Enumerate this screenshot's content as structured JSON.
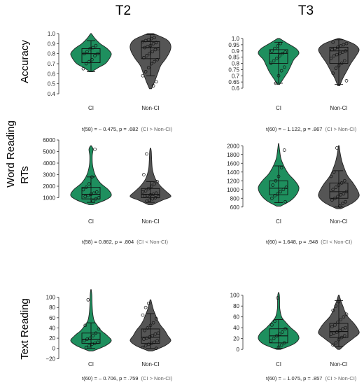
{
  "column_headers": [
    "T2",
    "T3"
  ],
  "row_group_label": "Word Reading",
  "row_labels": [
    "Accuracy",
    "RTs",
    "Text Reading"
  ],
  "colors": {
    "CI": "#1e8f5e",
    "Non-CI": "#555555",
    "outline": "#222222",
    "box": "#111111"
  },
  "chart_data": [
    {
      "type": "violin",
      "id": "acc-t2",
      "row": 0,
      "col": 0,
      "ylim": [
        0.4,
        1.0
      ],
      "yticks": [
        0.4,
        0.5,
        0.6,
        0.7,
        0.8,
        0.9,
        1.0
      ],
      "ytick_labels": [
        "0.4",
        "0.5",
        "0.6",
        "0.7",
        "0.8",
        "0.9",
        "1.0"
      ],
      "categories": [
        "CI",
        "Non-CI"
      ],
      "stat_text": "t(58) = – 0.475, p = .682",
      "direction_text": "(CI > Non-CI)",
      "groups": [
        {
          "name": "CI",
          "range": [
            0.62,
            1.0
          ],
          "q1": 0.71,
          "median": 0.8,
          "q3": 0.85,
          "whisker": [
            0.62,
            0.93
          ],
          "density": [
            [
              0.62,
              0.05
            ],
            [
              0.66,
              0.35
            ],
            [
              0.7,
              0.7
            ],
            [
              0.75,
              0.9
            ],
            [
              0.8,
              1.0
            ],
            [
              0.85,
              0.8
            ],
            [
              0.9,
              0.45
            ],
            [
              0.95,
              0.2
            ],
            [
              1.0,
              0.02
            ]
          ],
          "points": [
            0.65,
            0.7,
            0.72,
            0.74,
            0.78,
            0.8,
            0.8,
            0.82,
            0.85,
            0.86,
            0.88
          ]
        },
        {
          "name": "Non-CI",
          "range": [
            0.45,
            1.0
          ],
          "q1": 0.75,
          "median": 0.86,
          "q3": 0.92,
          "whisker": [
            0.58,
            0.99
          ],
          "density": [
            [
              0.45,
              0.05
            ],
            [
              0.52,
              0.2
            ],
            [
              0.6,
              0.35
            ],
            [
              0.68,
              0.5
            ],
            [
              0.75,
              0.75
            ],
            [
              0.82,
              0.95
            ],
            [
              0.88,
              1.0
            ],
            [
              0.94,
              0.8
            ],
            [
              1.0,
              0.15
            ]
          ],
          "points": [
            0.48,
            0.52,
            0.58,
            0.62,
            0.66,
            0.7,
            0.72,
            0.74,
            0.76,
            0.78,
            0.8,
            0.82,
            0.84,
            0.85,
            0.86,
            0.87,
            0.88,
            0.9,
            0.91,
            0.92,
            0.93,
            0.94,
            0.95,
            0.96
          ]
        }
      ]
    },
    {
      "type": "violin",
      "id": "acc-t3",
      "row": 0,
      "col": 1,
      "ylim": [
        0.6,
        1.0
      ],
      "yticks": [
        0.6,
        0.65,
        0.7,
        0.75,
        0.8,
        0.85,
        0.9,
        0.95,
        1.0
      ],
      "ytick_labels": [
        "0.6",
        "0.65",
        "0.7",
        "0.75",
        "0.8",
        "0.85",
        "0.9",
        "0.95",
        "1.0"
      ],
      "categories": [
        "CI",
        "Non-CI"
      ],
      "stat_text": "t(60) = – 1.122, p = .867",
      "direction_text": "(CI > Non-CI)",
      "groups": [
        {
          "name": "CI",
          "range": [
            0.63,
            1.0
          ],
          "q1": 0.8,
          "median": 0.88,
          "q3": 0.91,
          "whisker": [
            0.64,
            0.97
          ],
          "density": [
            [
              0.63,
              0.05
            ],
            [
              0.68,
              0.25
            ],
            [
              0.73,
              0.45
            ],
            [
              0.78,
              0.6
            ],
            [
              0.83,
              0.75
            ],
            [
              0.88,
              1.0
            ],
            [
              0.92,
              0.85
            ],
            [
              0.96,
              0.45
            ],
            [
              1.0,
              0.05
            ]
          ],
          "points": [
            0.64,
            0.7,
            0.74,
            0.77,
            0.8,
            0.82,
            0.84,
            0.86,
            0.88,
            0.89,
            0.9,
            0.92,
            0.94,
            0.96
          ]
        },
        {
          "name": "Non-CI",
          "range": [
            0.62,
            1.0
          ],
          "q1": 0.8,
          "median": 0.9,
          "q3": 0.93,
          "whisker": [
            0.63,
            0.99
          ],
          "density": [
            [
              0.62,
              0.05
            ],
            [
              0.68,
              0.2
            ],
            [
              0.74,
              0.4
            ],
            [
              0.8,
              0.6
            ],
            [
              0.86,
              0.85
            ],
            [
              0.91,
              1.0
            ],
            [
              0.95,
              0.8
            ],
            [
              0.98,
              0.4
            ],
            [
              1.0,
              0.05
            ]
          ],
          "points": [
            0.66,
            0.72,
            0.76,
            0.78,
            0.8,
            0.82,
            0.84,
            0.86,
            0.87,
            0.88,
            0.89,
            0.9,
            0.91,
            0.92,
            0.93,
            0.94,
            0.95,
            0.96,
            0.97
          ]
        }
      ]
    },
    {
      "type": "violin",
      "id": "rt-t2",
      "row": 1,
      "col": 0,
      "ylim": [
        0,
        6000
      ],
      "yticks": [
        1000,
        2000,
        3000,
        4000,
        5000,
        6000
      ],
      "ytick_labels": [
        "1000",
        "2000",
        "3000",
        "4000",
        "5000",
        "6000"
      ],
      "categories": [
        "CI",
        "Non-CI"
      ],
      "stat_text": "t(58) = 0.862, p = .804",
      "direction_text": "(CI < Non-CI)",
      "groups": [
        {
          "name": "CI",
          "range": [
            400,
            5500
          ],
          "q1": 900,
          "median": 1300,
          "q3": 1900,
          "whisker": [
            600,
            2800
          ],
          "density": [
            [
              400,
              0.1
            ],
            [
              800,
              0.7
            ],
            [
              1200,
              1.0
            ],
            [
              1700,
              0.85
            ],
            [
              2300,
              0.45
            ],
            [
              3000,
              0.2
            ],
            [
              3800,
              0.08
            ],
            [
              4600,
              0.06
            ],
            [
              5200,
              0.1
            ],
            [
              5500,
              0.02
            ]
          ],
          "points": [
            700,
            900,
            1000,
            1100,
            1200,
            1300,
            1400,
            1500,
            1700,
            1900,
            2200,
            2800,
            5200
          ]
        },
        {
          "name": "Non-CI",
          "range": [
            400,
            5300
          ],
          "q1": 1000,
          "median": 1300,
          "q3": 1800,
          "whisker": [
            600,
            2400
          ],
          "density": [
            [
              400,
              0.1
            ],
            [
              800,
              0.6
            ],
            [
              1100,
              1.0
            ],
            [
              1500,
              0.8
            ],
            [
              2000,
              0.5
            ],
            [
              2600,
              0.25
            ],
            [
              3400,
              0.1
            ],
            [
              4200,
              0.06
            ],
            [
              5000,
              0.04
            ],
            [
              5300,
              0.01
            ]
          ],
          "points": [
            700,
            800,
            900,
            1000,
            1100,
            1150,
            1200,
            1250,
            1300,
            1400,
            1500,
            1600,
            1800,
            2000,
            2200,
            2400,
            3000,
            4800
          ]
        }
      ]
    },
    {
      "type": "violin",
      "id": "rt-t3",
      "row": 1,
      "col": 1,
      "ylim": [
        500,
        2100
      ],
      "yticks": [
        600,
        800,
        1000,
        1200,
        1400,
        1600,
        1800,
        2000
      ],
      "ytick_labels": [
        "600",
        "800",
        "1000",
        "1200",
        "1400",
        "1600",
        "1800",
        "2000"
      ],
      "categories": [
        "CI",
        "Non-CI"
      ],
      "stat_text": "t(60) = 1.648, p = .948",
      "direction_text": "(CI < Non-CI)",
      "groups": [
        {
          "name": "CI",
          "range": [
            620,
            2050
          ],
          "q1": 880,
          "median": 1030,
          "q3": 1200,
          "whisker": [
            700,
            1540
          ],
          "density": [
            [
              620,
              0.1
            ],
            [
              750,
              0.6
            ],
            [
              900,
              0.9
            ],
            [
              1050,
              1.0
            ],
            [
              1200,
              0.8
            ],
            [
              1350,
              0.5
            ],
            [
              1500,
              0.3
            ],
            [
              1700,
              0.12
            ],
            [
              1900,
              0.05
            ],
            [
              2050,
              0.01
            ]
          ],
          "points": [
            720,
            800,
            860,
            900,
            950,
            1000,
            1050,
            1100,
            1200,
            1300,
            1500,
            1900
          ]
        },
        {
          "name": "Non-CI",
          "range": [
            560,
            2000
          ],
          "q1": 800,
          "median": 950,
          "q3": 1150,
          "whisker": [
            600,
            1430
          ],
          "density": [
            [
              560,
              0.1
            ],
            [
              700,
              0.7
            ],
            [
              850,
              1.0
            ],
            [
              1000,
              0.9
            ],
            [
              1150,
              0.7
            ],
            [
              1300,
              0.45
            ],
            [
              1450,
              0.3
            ],
            [
              1650,
              0.15
            ],
            [
              1850,
              0.06
            ],
            [
              2000,
              0.02
            ]
          ],
          "points": [
            620,
            680,
            720,
            760,
            800,
            840,
            880,
            900,
            950,
            1000,
            1050,
            1100,
            1150,
            1200,
            1300,
            1400,
            1950
          ]
        }
      ]
    },
    {
      "type": "violin",
      "id": "text-t2",
      "row": 2,
      "col": 0,
      "ylim": [
        -25,
        120
      ],
      "yticks": [
        -20,
        0,
        20,
        40,
        60,
        80,
        100
      ],
      "ytick_labels": [
        "−20",
        "0",
        "20",
        "40",
        "60",
        "80",
        "100"
      ],
      "categories": [
        "CI",
        "Non-CI"
      ],
      "stat_text": "t(60) = – 0.706, p = .759",
      "direction_text": "(CI > Non-CI)",
      "groups": [
        {
          "name": "CI",
          "range": [
            -5,
            115
          ],
          "q1": 10,
          "median": 18,
          "q3": 30,
          "whisker": [
            0,
            50
          ],
          "density": [
            [
              -5,
              0.1
            ],
            [
              5,
              0.7
            ],
            [
              15,
              1.0
            ],
            [
              25,
              0.8
            ],
            [
              35,
              0.5
            ],
            [
              45,
              0.3
            ],
            [
              55,
              0.15
            ],
            [
              70,
              0.08
            ],
            [
              90,
              0.05
            ],
            [
              105,
              0.04
            ],
            [
              115,
              0.01
            ]
          ],
          "points": [
            2,
            5,
            8,
            10,
            12,
            15,
            18,
            20,
            25,
            30,
            38,
            45,
            95
          ]
        },
        {
          "name": "Non-CI",
          "range": [
            -5,
            95
          ],
          "q1": 10,
          "median": 22,
          "q3": 38,
          "whisker": [
            0,
            68
          ],
          "density": [
            [
              -5,
              0.1
            ],
            [
              5,
              0.7
            ],
            [
              15,
              1.0
            ],
            [
              25,
              0.85
            ],
            [
              35,
              0.7
            ],
            [
              45,
              0.5
            ],
            [
              55,
              0.35
            ],
            [
              65,
              0.25
            ],
            [
              75,
              0.15
            ],
            [
              85,
              0.08
            ],
            [
              95,
              0.02
            ]
          ],
          "points": [
            0,
            2,
            5,
            8,
            10,
            12,
            15,
            18,
            20,
            22,
            25,
            28,
            30,
            35,
            40,
            45,
            50,
            58,
            65,
            80,
            88
          ]
        }
      ]
    },
    {
      "type": "violin",
      "id": "text-t3",
      "row": 2,
      "col": 1,
      "ylim": [
        -5,
        110
      ],
      "yticks": [
        0,
        20,
        40,
        60,
        80,
        100
      ],
      "ytick_labels": [
        "0",
        "20",
        "40",
        "60",
        "80",
        "100"
      ],
      "categories": [
        "CI",
        "Non-CI"
      ],
      "stat_text": "t(60) = – 1.075, p = .857",
      "direction_text": "(CI > Non-CI)",
      "groups": [
        {
          "name": "CI",
          "range": [
            0,
            105
          ],
          "q1": 12,
          "median": 25,
          "q3": 38,
          "whisker": [
            2,
            55
          ],
          "density": [
            [
              0,
              0.1
            ],
            [
              10,
              0.75
            ],
            [
              20,
              1.0
            ],
            [
              30,
              0.9
            ],
            [
              40,
              0.6
            ],
            [
              50,
              0.35
            ],
            [
              60,
              0.15
            ],
            [
              75,
              0.06
            ],
            [
              90,
              0.05
            ],
            [
              100,
              0.04
            ],
            [
              105,
              0.01
            ]
          ],
          "points": [
            4,
            8,
            12,
            15,
            20,
            25,
            28,
            32,
            38,
            45,
            52,
            95
          ]
        },
        {
          "name": "Non-CI",
          "range": [
            0,
            100
          ],
          "q1": 22,
          "median": 33,
          "q3": 48,
          "whisker": [
            5,
            90
          ],
          "density": [
            [
              0,
              0.05
            ],
            [
              10,
              0.35
            ],
            [
              20,
              0.7
            ],
            [
              30,
              1.0
            ],
            [
              40,
              0.9
            ],
            [
              50,
              0.7
            ],
            [
              60,
              0.45
            ],
            [
              70,
              0.3
            ],
            [
              80,
              0.2
            ],
            [
              90,
              0.1
            ],
            [
              100,
              0.02
            ]
          ],
          "points": [
            8,
            12,
            18,
            22,
            25,
            28,
            30,
            32,
            35,
            38,
            40,
            42,
            45,
            50,
            55,
            60,
            65,
            72,
            80,
            88
          ]
        }
      ]
    }
  ]
}
